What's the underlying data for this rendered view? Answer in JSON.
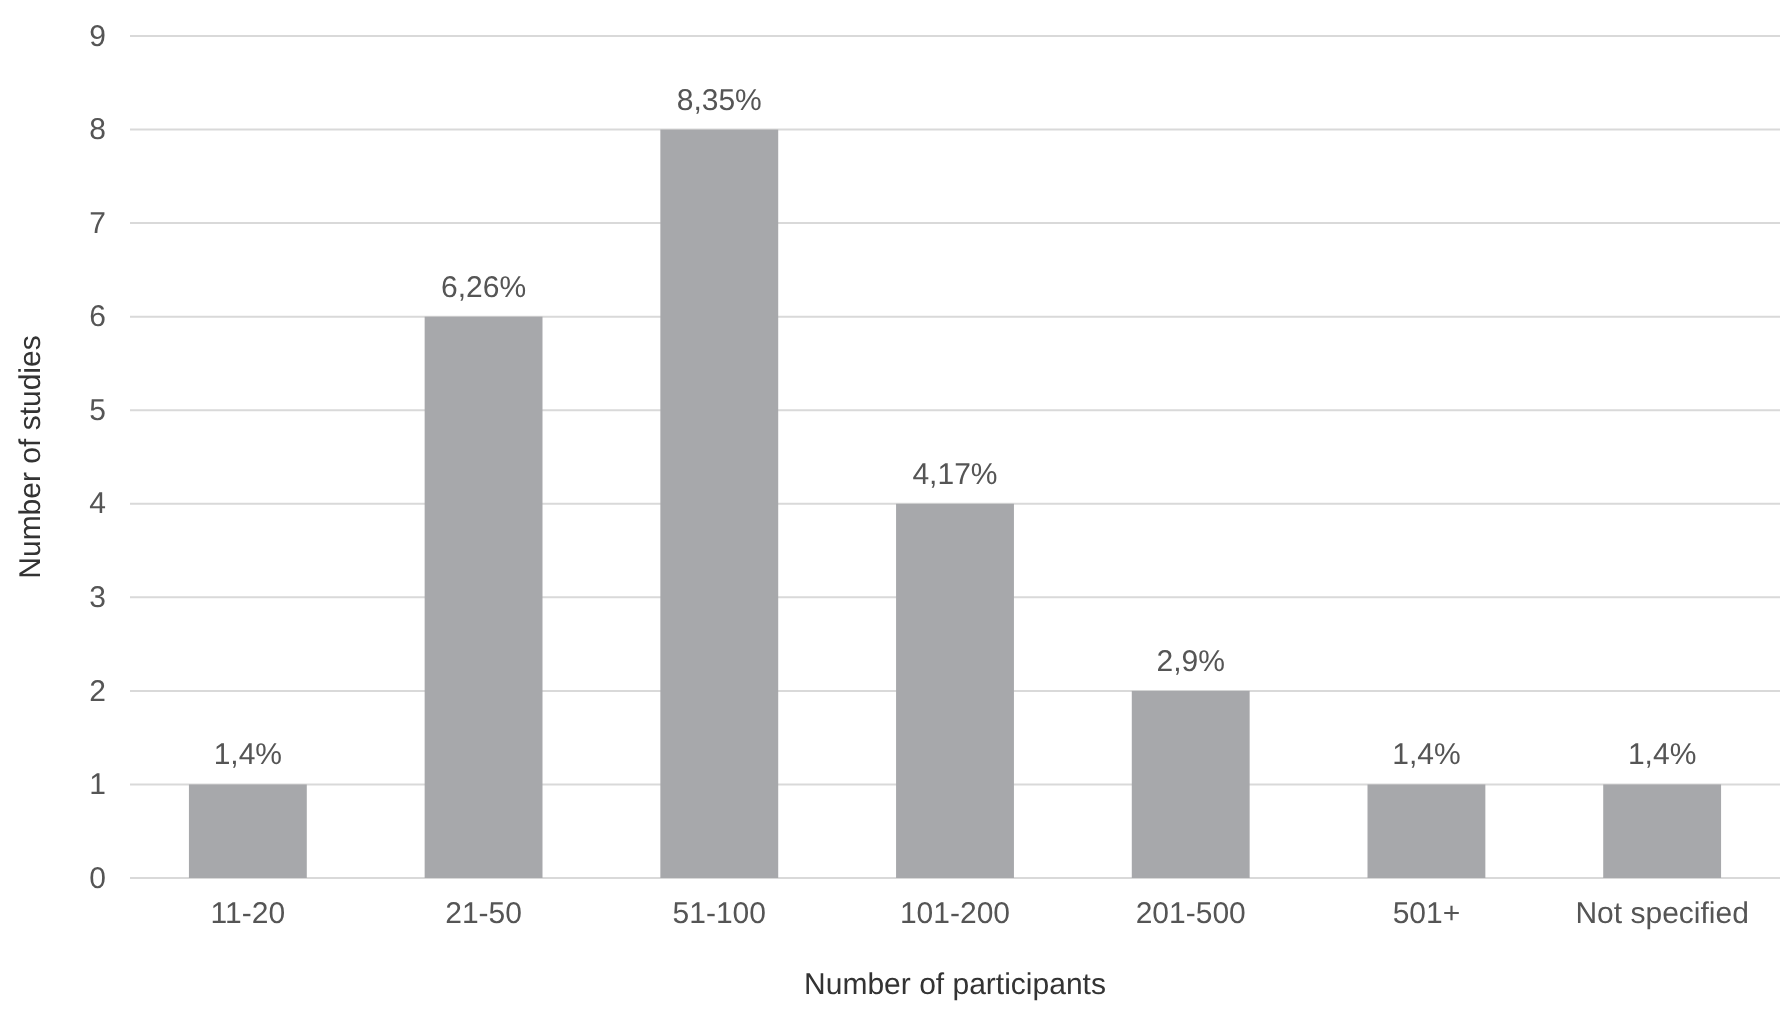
{
  "chart_data": {
    "type": "bar",
    "xlabel": "Number of participants",
    "ylabel": "Number of studies",
    "categories": [
      "11-20",
      "21-50",
      "51-100",
      "101-200",
      "201-500",
      "501+",
      "Not specified"
    ],
    "values": [
      1,
      6,
      8,
      4,
      2,
      1,
      1
    ],
    "annotations": [
      {
        "text": "1,4%",
        "x": "11-20",
        "y": 1
      },
      {
        "text": "6,26%",
        "x": "21-50",
        "y": 6
      },
      {
        "text": "8,35%",
        "x": "51-100",
        "y": 8
      },
      {
        "text": "4,17%",
        "x": "101-200",
        "y": 4
      },
      {
        "text": "2,9%",
        "x": "201-500",
        "y": 2
      },
      {
        "text": "1,4%",
        "x": "501+",
        "y": 1
      },
      {
        "text": "1,4%",
        "x": "Not specified",
        "y": 1
      }
    ],
    "color": "#a7a8ab",
    "ylim": [
      0,
      9
    ],
    "yticks": [
      0,
      1,
      2,
      3,
      4,
      5,
      6,
      7,
      8,
      9
    ],
    "grid": "y"
  }
}
